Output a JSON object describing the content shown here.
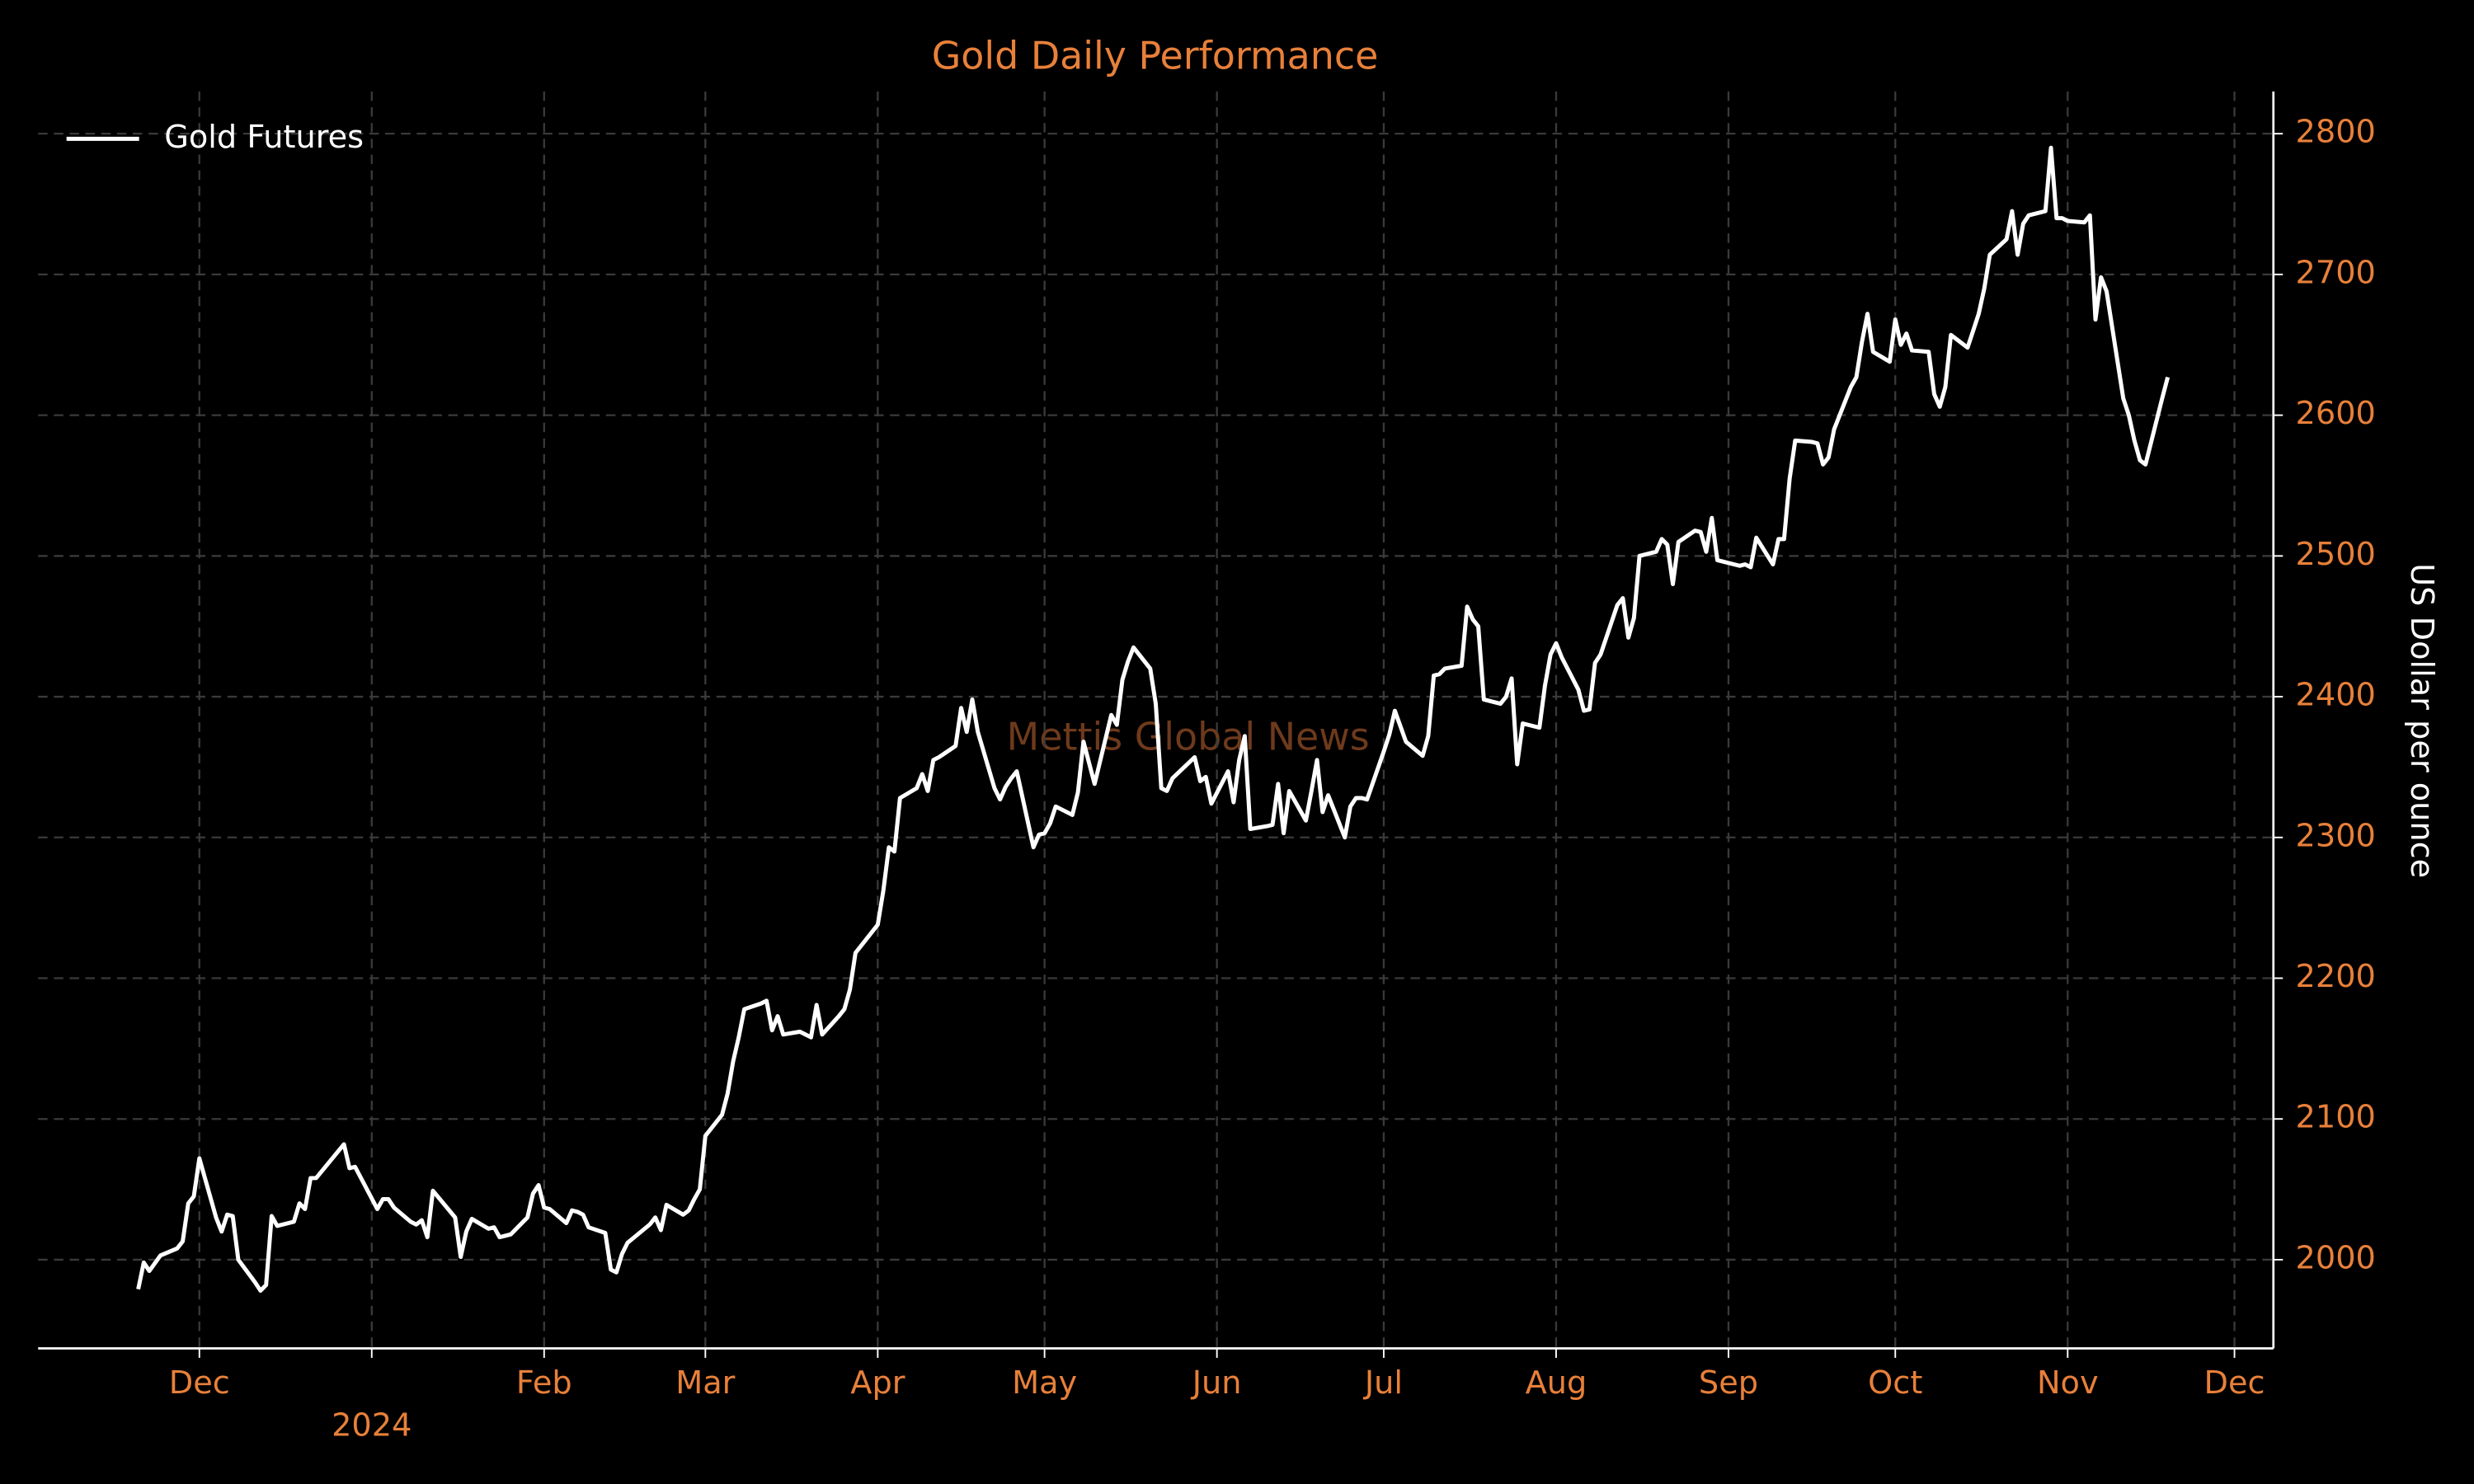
{
  "chart_data": {
    "type": "line",
    "title": "Gold Daily Performance",
    "ylabel": "US Dollar per ounce",
    "watermark": "Mettis Global News",
    "legend": "upper left",
    "grid": true,
    "x": [
      "2023-11-20",
      "2023-11-21",
      "2023-11-22",
      "2023-11-24",
      "2023-11-27",
      "2023-11-28",
      "2023-11-29",
      "2023-11-30",
      "2023-12-01",
      "2023-12-04",
      "2023-12-05",
      "2023-12-06",
      "2023-12-07",
      "2023-12-08",
      "2023-12-11",
      "2023-12-12",
      "2023-12-13",
      "2023-12-14",
      "2023-12-15",
      "2023-12-18",
      "2023-12-19",
      "2023-12-20",
      "2023-12-21",
      "2023-12-22",
      "2023-12-27",
      "2023-12-28",
      "2023-12-29",
      "2024-01-02",
      "2024-01-03",
      "2024-01-04",
      "2024-01-05",
      "2024-01-08",
      "2024-01-09",
      "2024-01-10",
      "2024-01-11",
      "2024-01-12",
      "2024-01-16",
      "2024-01-17",
      "2024-01-18",
      "2024-01-19",
      "2024-01-22",
      "2024-01-23",
      "2024-01-24",
      "2024-01-25",
      "2024-01-26",
      "2024-01-29",
      "2024-01-30",
      "2024-01-31",
      "2024-02-01",
      "2024-02-02",
      "2024-02-05",
      "2024-02-06",
      "2024-02-07",
      "2024-02-08",
      "2024-02-09",
      "2024-02-12",
      "2024-02-13",
      "2024-02-14",
      "2024-02-15",
      "2024-02-16",
      "2024-02-20",
      "2024-02-21",
      "2024-02-22",
      "2024-02-23",
      "2024-02-26",
      "2024-02-27",
      "2024-02-28",
      "2024-02-29",
      "2024-03-01",
      "2024-03-04",
      "2024-03-05",
      "2024-03-06",
      "2024-03-07",
      "2024-03-08",
      "2024-03-11",
      "2024-03-12",
      "2024-03-13",
      "2024-03-14",
      "2024-03-15",
      "2024-03-18",
      "2024-03-19",
      "2024-03-20",
      "2024-03-21",
      "2024-03-22",
      "2024-03-25",
      "2024-03-26",
      "2024-03-27",
      "2024-03-28",
      "2024-04-01",
      "2024-04-02",
      "2024-04-03",
      "2024-04-04",
      "2024-04-05",
      "2024-04-08",
      "2024-04-09",
      "2024-04-10",
      "2024-04-11",
      "2024-04-12",
      "2024-04-15",
      "2024-04-16",
      "2024-04-17",
      "2024-04-18",
      "2024-04-19",
      "2024-04-22",
      "2024-04-23",
      "2024-04-24",
      "2024-04-25",
      "2024-04-26",
      "2024-04-29",
      "2024-04-30",
      "2024-05-01",
      "2024-05-02",
      "2024-05-03",
      "2024-05-06",
      "2024-05-07",
      "2024-05-08",
      "2024-05-09",
      "2024-05-10",
      "2024-05-13",
      "2024-05-14",
      "2024-05-15",
      "2024-05-16",
      "2024-05-17",
      "2024-05-20",
      "2024-05-21",
      "2024-05-22",
      "2024-05-23",
      "2024-05-24",
      "2024-05-28",
      "2024-05-29",
      "2024-05-30",
      "2024-05-31",
      "2024-06-03",
      "2024-06-04",
      "2024-06-05",
      "2024-06-06",
      "2024-06-07",
      "2024-06-10",
      "2024-06-11",
      "2024-06-12",
      "2024-06-13",
      "2024-06-14",
      "2024-06-17",
      "2024-06-18",
      "2024-06-19",
      "2024-06-20",
      "2024-06-21",
      "2024-06-24",
      "2024-06-25",
      "2024-06-26",
      "2024-06-27",
      "2024-06-28",
      "2024-07-01",
      "2024-07-02",
      "2024-07-03",
      "2024-07-05",
      "2024-07-08",
      "2024-07-09",
      "2024-07-10",
      "2024-07-11",
      "2024-07-12",
      "2024-07-15",
      "2024-07-16",
      "2024-07-17",
      "2024-07-18",
      "2024-07-19",
      "2024-07-22",
      "2024-07-23",
      "2024-07-24",
      "2024-07-25",
      "2024-07-26",
      "2024-07-29",
      "2024-07-30",
      "2024-07-31",
      "2024-08-01",
      "2024-08-02",
      "2024-08-05",
      "2024-08-06",
      "2024-08-07",
      "2024-08-08",
      "2024-08-09",
      "2024-08-12",
      "2024-08-13",
      "2024-08-14",
      "2024-08-15",
      "2024-08-16",
      "2024-08-19",
      "2024-08-20",
      "2024-08-21",
      "2024-08-22",
      "2024-08-23",
      "2024-08-26",
      "2024-08-27",
      "2024-08-28",
      "2024-08-29",
      "2024-08-30",
      "2024-09-03",
      "2024-09-04",
      "2024-09-05",
      "2024-09-06",
      "2024-09-09",
      "2024-09-10",
      "2024-09-11",
      "2024-09-12",
      "2024-09-13",
      "2024-09-16",
      "2024-09-17",
      "2024-09-18",
      "2024-09-19",
      "2024-09-20",
      "2024-09-23",
      "2024-09-24",
      "2024-09-25",
      "2024-09-26",
      "2024-09-27",
      "2024-09-30",
      "2024-10-01",
      "2024-10-02",
      "2024-10-03",
      "2024-10-04",
      "2024-10-07",
      "2024-10-08",
      "2024-10-09",
      "2024-10-10",
      "2024-10-11",
      "2024-10-14",
      "2024-10-15",
      "2024-10-16",
      "2024-10-17",
      "2024-10-18",
      "2024-10-21",
      "2024-10-22",
      "2024-10-23",
      "2024-10-24",
      "2024-10-25",
      "2024-10-28",
      "2024-10-29",
      "2024-10-30",
      "2024-10-31",
      "2024-11-01",
      "2024-11-04",
      "2024-11-05",
      "2024-11-06",
      "2024-11-07",
      "2024-11-08",
      "2024-11-11",
      "2024-11-12",
      "2024-11-13",
      "2024-11-14",
      "2024-11-15",
      "2024-11-18",
      "2024-11-19"
    ],
    "series": [
      {
        "name": "Gold Futures",
        "color": "#ffffff",
        "values": [
          1979,
          1998,
          1992,
          2003,
          2008,
          2013,
          2040,
          2045,
          2072,
          2030,
          2020,
          2032,
          2031,
          2000,
          1984,
          1978,
          1982,
          2031,
          2024,
          2027,
          2040,
          2036,
          2058,
          2058,
          2082,
          2065,
          2066,
          2036,
          2043,
          2043,
          2037,
          2027,
          2025,
          2028,
          2016,
          2049,
          2030,
          2002,
          2020,
          2029,
          2022,
          2023,
          2016,
          2017,
          2018,
          2030,
          2047,
          2053,
          2037,
          2036,
          2026,
          2035,
          2034,
          2032,
          2023,
          2019,
          1993,
          1991,
          2004,
          2012,
          2025,
          2030,
          2021,
          2039,
          2032,
          2035,
          2043,
          2050,
          2088,
          2103,
          2118,
          2141,
          2158,
          2178,
          2182,
          2184,
          2163,
          2173,
          2160,
          2162,
          2160,
          2158,
          2181,
          2160,
          2173,
          2178,
          2192,
          2218,
          2238,
          2262,
          2293,
          2290,
          2328,
          2335,
          2345,
          2333,
          2355,
          2357,
          2365,
          2392,
          2375,
          2398,
          2375,
          2335,
          2327,
          2336,
          2342,
          2347,
          2293,
          2302,
          2303,
          2310,
          2322,
          2316,
          2332,
          2368,
          2353,
          2338,
          2387,
          2380,
          2412,
          2425,
          2435,
          2420,
          2395,
          2335,
          2333,
          2342,
          2357,
          2340,
          2343,
          2324,
          2347,
          2325,
          2355,
          2372,
          2306,
          2308,
          2309,
          2338,
          2303,
          2333,
          2312,
          2333,
          2355,
          2318,
          2330,
          2300,
          2322,
          2328,
          2328,
          2327,
          2361,
          2373,
          2390,
          2368,
          2358,
          2372,
          2415,
          2416,
          2420,
          2422,
          2464,
          2455,
          2450,
          2398,
          2395,
          2400,
          2413,
          2352,
          2381,
          2378,
          2408,
          2430,
          2438,
          2428,
          2405,
          2390,
          2391,
          2424,
          2430,
          2465,
          2470,
          2442,
          2456,
          2500,
          2503,
          2512,
          2508,
          2480,
          2510,
          2518,
          2517,
          2503,
          2527,
          2497,
          2493,
          2494,
          2492,
          2513,
          2494,
          2512,
          2512,
          2555,
          2582,
          2581,
          2580,
          2565,
          2570,
          2590,
          2620,
          2627,
          2652,
          2672,
          2645,
          2638,
          2668,
          2650,
          2658,
          2646,
          2645,
          2615,
          2606,
          2620,
          2657,
          2648,
          2660,
          2672,
          2690,
          2714,
          2725,
          2745,
          2714,
          2736,
          2742,
          2745,
          2790,
          2740,
          2740,
          2738,
          2737,
          2742,
          2668,
          2698,
          2688,
          2612,
          2600,
          2582,
          2568,
          2565,
          2612,
          2627
        ]
      }
    ],
    "xlim": [
      "2023-11-02",
      "2024-12-08"
    ],
    "xticks": [
      {
        "value": "2023-12-01",
        "label": "Dec"
      },
      {
        "value": "2024-01-01",
        "label": "2024"
      },
      {
        "value": "2024-02-01",
        "label": "Feb"
      },
      {
        "value": "2024-03-01",
        "label": "Mar"
      },
      {
        "value": "2024-04-01",
        "label": "Apr"
      },
      {
        "value": "2024-05-01",
        "label": "May"
      },
      {
        "value": "2024-06-01",
        "label": "Jun"
      },
      {
        "value": "2024-07-01",
        "label": "Jul"
      },
      {
        "value": "2024-08-01",
        "label": "Aug"
      },
      {
        "value": "2024-09-01",
        "label": "Sep"
      },
      {
        "value": "2024-10-01",
        "label": "Oct"
      },
      {
        "value": "2024-11-01",
        "label": "Nov"
      },
      {
        "value": "2024-12-01",
        "label": "Dec"
      }
    ],
    "ylim": [
      1937,
      2830
    ],
    "yticks": [
      2000,
      2100,
      2200,
      2300,
      2400,
      2500,
      2600,
      2700,
      2800
    ]
  }
}
